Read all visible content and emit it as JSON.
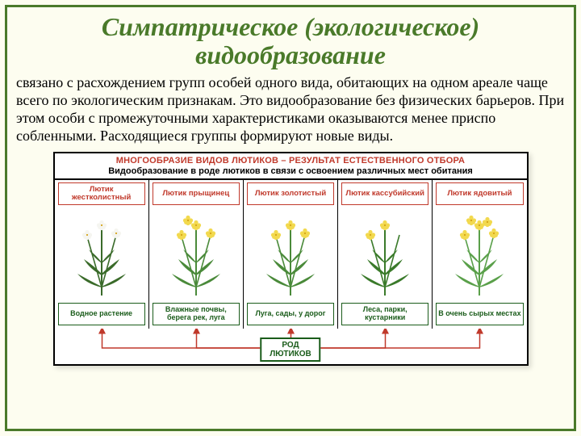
{
  "title": "Симпатрическое (экологическое) видообразование",
  "body": "связано с расхождением групп особей одного вида, обитающих на одном ареале чаще всего по экологическим признакам. Это видообразование без физических барьеров. При этом особи с промежуточными характеристиками оказываются менее приспо собленными. Расходящиеся группы формируют новые виды.",
  "diagram": {
    "title": "МНОГООБРАЗИЕ ВИДОВ ЛЮТИКОВ – РЕЗУЛЬТАТ ЕСТЕСТВЕННОГО ОТБОРА",
    "subtitle": "Видообразование в роде лютиков в связи с освоением различных мест обитания",
    "root_label": "РОД\nЛЮТИКОВ",
    "columns": [
      {
        "species": "Лютик жестколистный",
        "habitat": "Водное растение",
        "flower": "#f5f5f0",
        "leaf": "#3a6b2a",
        "nflowers": 3
      },
      {
        "species": "Лютик прыщинец",
        "habitat": "Влажные почвы, берега рек, луга",
        "flower": "#f2d94e",
        "leaf": "#4a8a3a",
        "nflowers": 4
      },
      {
        "species": "Лютик золотистый",
        "habitat": "Луга, сады, у дорог",
        "flower": "#f2d94e",
        "leaf": "#4a8a3a",
        "nflowers": 3
      },
      {
        "species": "Лютик кассубийский",
        "habitat": "Леса, парки, кустарники",
        "flower": "#f2d94e",
        "leaf": "#3a7a2a",
        "nflowers": 2
      },
      {
        "species": "Лютик ядовитый",
        "habitat": "В очень сырых местах",
        "flower": "#f2d94e",
        "leaf": "#5aa04a",
        "nflowers": 5
      }
    ],
    "colors": {
      "frame": "#4a7a2a",
      "species_border": "#c0392b",
      "habitat_border": "#1a5c1a",
      "connector": "#c0392b"
    }
  }
}
